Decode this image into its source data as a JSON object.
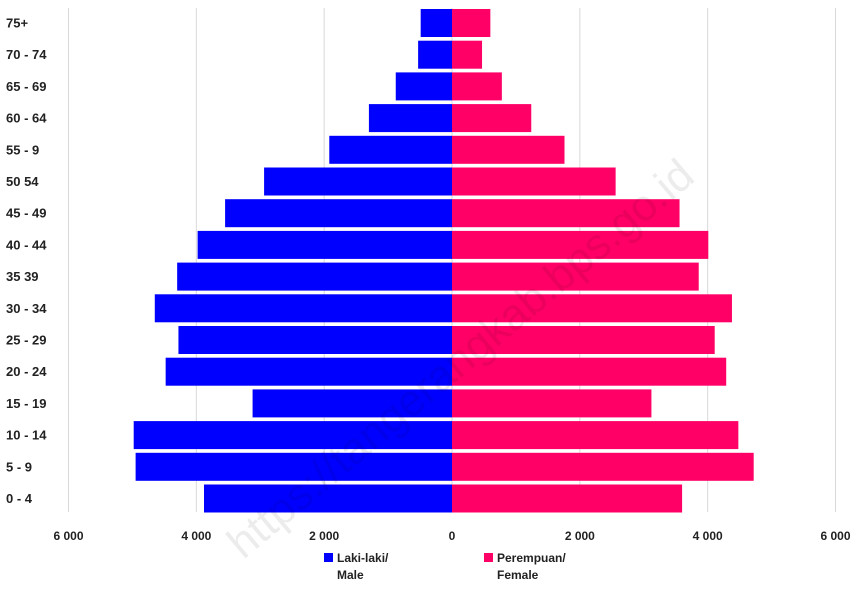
{
  "chart_data": {
    "type": "bar",
    "orientation": "horizontal",
    "layout": "population-pyramid",
    "categories": [
      "0 - 4",
      "5 - 9",
      "10 - 14",
      "15 - 19",
      "20 - 24",
      "25 - 29",
      "30 - 34",
      "35 39",
      "40 - 44",
      "45 - 49",
      "50 54",
      "55 - 9",
      "60 - 64",
      "65 - 69",
      "70 - 74",
      "75+"
    ],
    "series": [
      {
        "name": "Laki-laki/ Male",
        "legend_lines": [
          "Laki-laki/",
          "Male"
        ],
        "color": "#0000ff",
        "side": "left",
        "values": [
          3880,
          4950,
          4980,
          3120,
          4480,
          4280,
          4650,
          4300,
          3980,
          3550,
          2940,
          1920,
          1300,
          880,
          530,
          490
        ]
      },
      {
        "name": "Perempuan/ Female",
        "legend_lines": [
          "Perempuan/",
          "Female"
        ],
        "color": "#ff0066",
        "side": "right",
        "values": [
          3600,
          4720,
          4480,
          3120,
          4290,
          4110,
          4380,
          3860,
          4010,
          3560,
          2560,
          1760,
          1240,
          780,
          470,
          600
        ]
      }
    ],
    "xlim": [
      -6000,
      6000
    ],
    "xticks": [
      -6000,
      -4000,
      -2000,
      0,
      2000,
      4000,
      6000
    ],
    "xtick_labels": [
      "6 000",
      "4 000",
      "2 000",
      "0",
      "2 000",
      "4 000",
      "6 000"
    ],
    "grid": "vertical",
    "legend_position": "bottom-center",
    "title": "",
    "xlabel": "",
    "ylabel": "",
    "watermark": "https://tangerangkab.bps.go.id"
  }
}
